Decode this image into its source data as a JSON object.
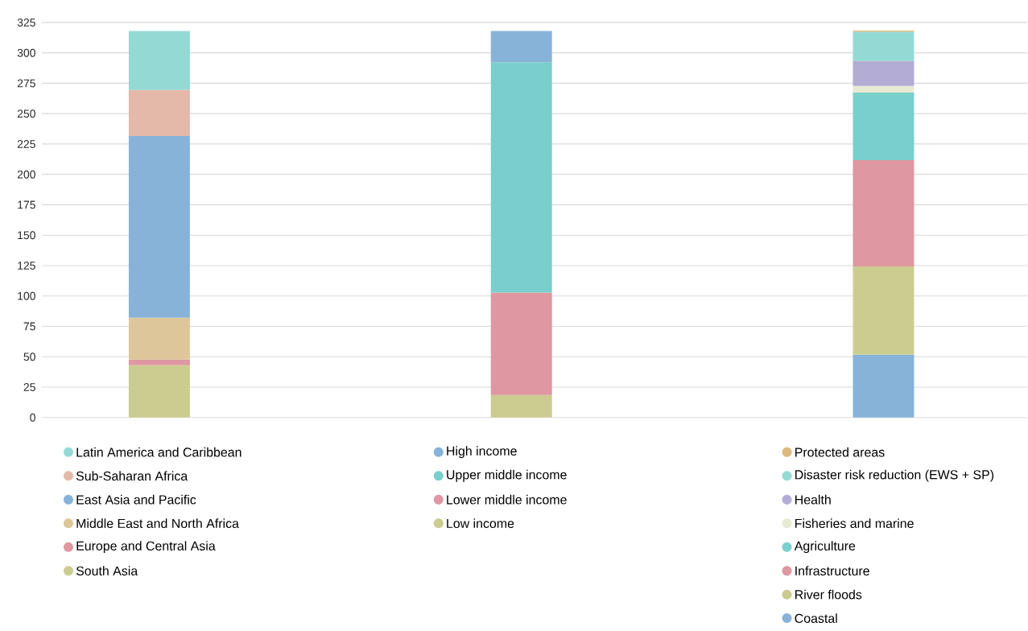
{
  "chart_data": {
    "type": "bar",
    "stacked": true,
    "categories": [
      null,
      null,
      null
    ],
    "ylim": [
      0,
      325
    ],
    "yticks": [
      0,
      25,
      50,
      75,
      100,
      125,
      150,
      175,
      200,
      225,
      250,
      275,
      300,
      325
    ],
    "grid": "y",
    "tick_labels": "y",
    "legend": "bottom",
    "series": [
      {
        "name": "South Asia",
        "color": "#cbcc90",
        "values": [
          43,
          null,
          null
        ]
      },
      {
        "name": "Europe and Central Asia",
        "color": "#df97a1",
        "values": [
          4.6,
          null,
          null
        ]
      },
      {
        "name": "Middle East and North Africa",
        "color": "#ddc699",
        "values": [
          34.5,
          null,
          null
        ]
      },
      {
        "name": "East Asia and Pacific",
        "color": "#88b3d8",
        "values": [
          149.5,
          null,
          null
        ]
      },
      {
        "name": "Sub-Saharan Africa",
        "color": "#e4b9aa",
        "values": [
          38,
          null,
          null
        ]
      },
      {
        "name": "Latin America and Caribbean",
        "color": "#95d9d5",
        "values": [
          48.5,
          null,
          null
        ]
      },
      {
        "name": "Low income",
        "color": "#cbcc90",
        "values": [
          null,
          18.5,
          null
        ]
      },
      {
        "name": "Lower middle income",
        "color": "#df97a1",
        "values": [
          null,
          84.3,
          null
        ]
      },
      {
        "name": "Upper middle income",
        "color": "#7acfcc",
        "values": [
          null,
          189.5,
          null
        ]
      },
      {
        "name": "High income",
        "color": "#88b3d8",
        "values": [
          null,
          25.7,
          null
        ]
      },
      {
        "name": "Coastal",
        "color": "#88b3d8",
        "values": [
          null,
          null,
          51.6
        ]
      },
      {
        "name": "River floods",
        "color": "#cbcc90",
        "values": [
          null,
          null,
          72.8
        ]
      },
      {
        "name": "Infrastructure",
        "color": "#df97a1",
        "values": [
          null,
          null,
          87.4
        ]
      },
      {
        "name": "Agriculture",
        "color": "#79cfcc",
        "values": [
          null,
          null,
          55.6
        ]
      },
      {
        "name": "Fisheries and marine",
        "color": "#e8ebd3",
        "values": [
          null,
          null,
          5.5
        ]
      },
      {
        "name": "Health",
        "color": "#b3acd4",
        "values": [
          null,
          null,
          20.5
        ]
      },
      {
        "name": "Disaster risk reduction (EWS + SP)",
        "color": "#95d9d5",
        "values": [
          null,
          null,
          24
        ]
      },
      {
        "name": "Protected areas",
        "color": "#dbb97f",
        "values": [
          null,
          null,
          1
        ]
      }
    ]
  }
}
